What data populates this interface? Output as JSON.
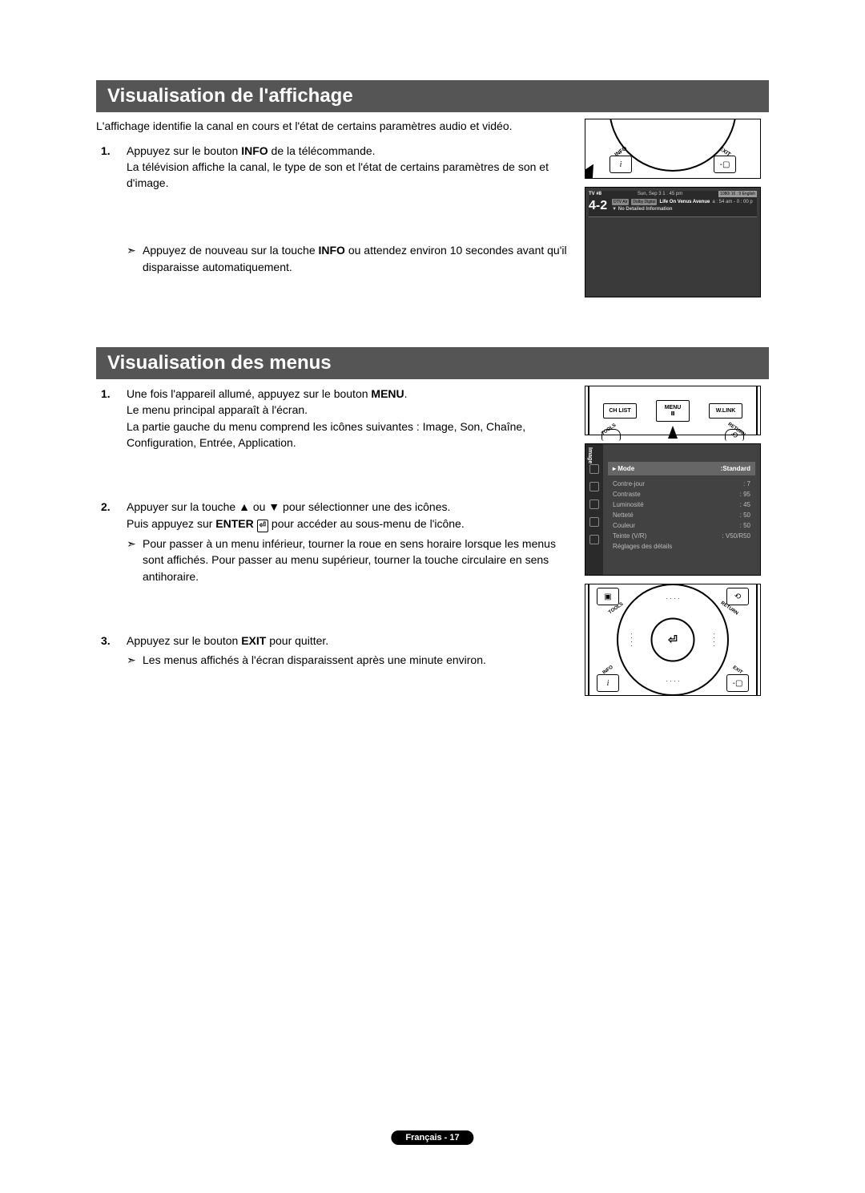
{
  "section1": {
    "title": "Visualisation de l'affichage",
    "intro": "L'affichage identifie la canal en cours et l'état de certains paramètres audio et vidéo.",
    "step1_a": "Appuyez sur le bouton ",
    "step1_bold": "INFO",
    "step1_b": " de la télécommande.",
    "step1_c": "La télévision affiche la canal, le type de son et l'état de certains paramètres de son et d'image.",
    "note_a": "Appuyez de nouveau sur la touche ",
    "note_bold": "INFO",
    "note_b": " ou attendez environ 10 secondes avant qu'il disparaisse automatiquement."
  },
  "section2": {
    "title": "Visualisation des menus",
    "s1a": "Une fois l'appareil allumé, appuyez sur le bouton ",
    "s1bold": "MENU",
    "s1b": ".",
    "s1c": "Le menu principal apparaît à l'écran.",
    "s1d": "La partie gauche du menu comprend les icônes suivantes : Image, Son, Chaîne, Configuration, Entrée, Application.",
    "s2a": "Appuyer sur la touche ▲ ou ▼ pour sélectionner une des icônes.",
    "s2b_a": "Puis appuyez sur ",
    "s2b_bold": "ENTER",
    "s2b_b": " pour accéder au sous-menu de l'icône.",
    "s2note": "Pour passer à un menu inférieur, tourner la roue en sens horaire lorsque les menus sont affichés. Pour passer au menu supérieur, tourner la touche circulaire en sens antihoraire.",
    "s3a": "Appuyez sur le bouton ",
    "s3bold": "EXIT",
    "s3b": " pour quitter.",
    "s3note": "Les menus affichés à l'écran disparaissent après une minute environ."
  },
  "remote": {
    "chlist": "CH LIST",
    "menu": "MENU",
    "wlink": "W.LINK",
    "tools": "TOOLS",
    "return": "RETURN",
    "info": "INFO",
    "exit": "EXIT",
    "enter": "⏎"
  },
  "tvinfo": {
    "source": "TV #8",
    "date": "Sun, Sep 3 1 : 45 pm",
    "badge": "1080i  16 : 9  English",
    "ch": "4-2",
    "dtv": "DTV Air",
    "dolby": "Dolby Digital",
    "prog": "Life On Venus Avenue",
    "time": "a : 54 am - 0 : 00 p",
    "noinfo": "No Detailed Information"
  },
  "menu": {
    "sidelabel": "Image",
    "head_l": "Mode",
    "head_r": ":Standard",
    "rows": [
      {
        "l": "Contre-jour",
        "r": ": 7"
      },
      {
        "l": "Contraste",
        "r": ": 95"
      },
      {
        "l": "Luminosité",
        "r": ": 45"
      },
      {
        "l": "Netteté",
        "r": ": 50"
      },
      {
        "l": "Couleur",
        "r": ": 50"
      },
      {
        "l": "Teinte (V/R)",
        "r": ": V50/R50"
      },
      {
        "l": "Réglages des détails",
        "r": ""
      }
    ]
  },
  "footer": "Français - 17",
  "colors": {
    "title_bg": "#555555",
    "screen_bg": "#3a3a3a",
    "menu_bg": "#424242"
  }
}
